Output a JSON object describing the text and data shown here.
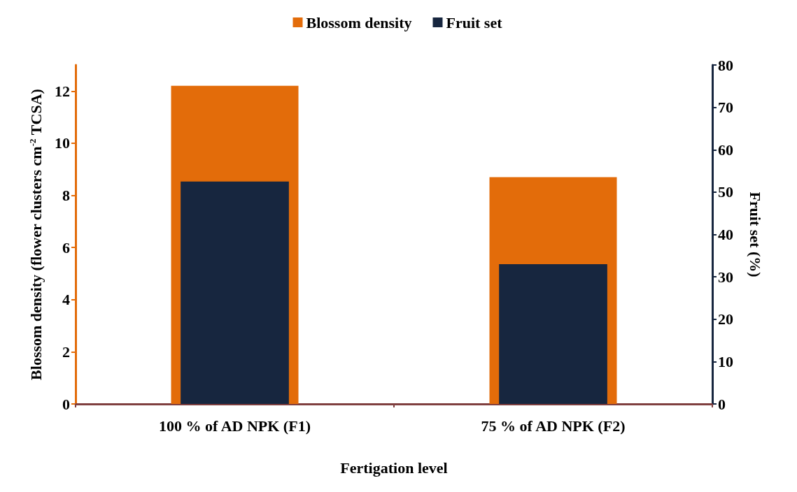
{
  "chart_data": {
    "type": "bar",
    "categories": [
      "100 % of AD NPK (F1)",
      "75 % of AD NPK (F2)"
    ],
    "xlabel": "Fertigation level",
    "ylabel": "Blossom density (flower clusters cm$^{-2}$ TCSA)",
    "y2label": "Fruit set (%)",
    "series": [
      {
        "name": "Blossom density",
        "color": "#e36c0a",
        "values": [
          12.2,
          8.7
        ]
      },
      {
        "name": "Fruit set",
        "color": "#17263f",
        "values": [
          52.5,
          33
        ],
        "axis": "y2"
      }
    ],
    "ylim": [
      0,
      13
    ],
    "yticks": [
      0,
      2,
      4,
      6,
      8,
      10,
      12
    ],
    "y2lim": [
      0,
      80
    ],
    "y2ticks": [
      0,
      10,
      20,
      30,
      40,
      50,
      60,
      70,
      80
    ],
    "grid": false,
    "legend": "top"
  }
}
